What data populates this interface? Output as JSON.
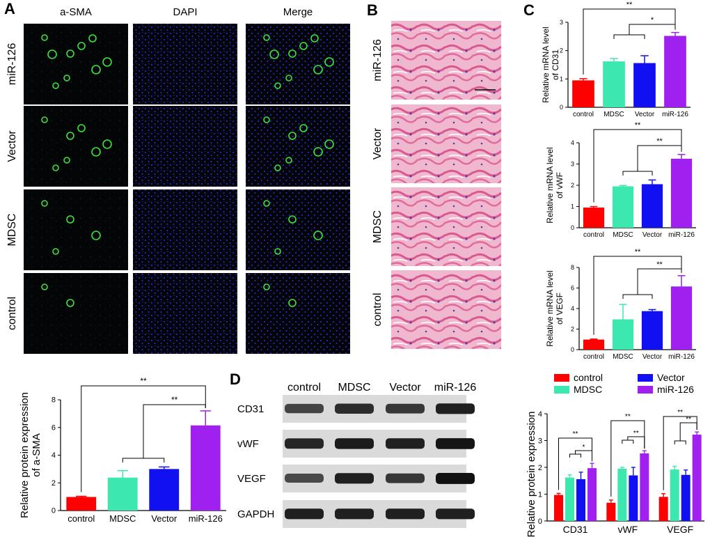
{
  "panel_letters": {
    "a": "A",
    "b": "B",
    "c": "C",
    "d": "D"
  },
  "panel_a": {
    "columns": [
      "a-SMA",
      "DAPI",
      "Merge"
    ],
    "rows": [
      "miR-126",
      "Vector",
      "MDSC",
      "control"
    ]
  },
  "panel_b": {
    "rows": [
      "miR-126",
      "Vector",
      "MDSC",
      "control"
    ]
  },
  "colors": {
    "control": "#ff0000",
    "MDSC": "#3ce8b0",
    "Vector": "#1010f0",
    "miR-126": "#a020f0",
    "fluor_bg": "#04040a",
    "he_pink": "#e98fb4"
  },
  "panel_d": {
    "lanes": [
      "control",
      "MDSC",
      "Vector",
      "miR-126"
    ],
    "proteins": [
      "CD31",
      "vWF",
      "VEGF",
      "GAPDH"
    ],
    "band_intensity": [
      [
        0.55,
        0.75,
        0.65,
        0.85
      ],
      [
        0.8,
        0.9,
        0.85,
        0.95
      ],
      [
        0.5,
        0.85,
        0.65,
        0.98
      ],
      [
        0.85,
        0.85,
        0.85,
        0.85
      ]
    ]
  },
  "chart_data": [
    {
      "id": "c_cd31",
      "type": "bar",
      "categories": [
        "control",
        "MDSC",
        "Vector",
        "miR-126"
      ],
      "values": [
        0.95,
        1.62,
        1.56,
        2.52
      ],
      "errors": [
        0.06,
        0.1,
        0.26,
        0.12
      ],
      "ylabel": [
        "Relative mRNA level",
        "of CD31"
      ],
      "ylim": [
        0,
        3
      ],
      "yticks": [
        0,
        1,
        2,
        3
      ],
      "significance": [
        "**",
        "*"
      ]
    },
    {
      "id": "c_vwf",
      "type": "bar",
      "categories": [
        "control",
        "MDSC",
        "Vector",
        "miR-126"
      ],
      "values": [
        0.95,
        1.95,
        2.05,
        3.25
      ],
      "errors": [
        0.05,
        0.04,
        0.2,
        0.2
      ],
      "ylabel": [
        "Relative mRNA level",
        "of vWF"
      ],
      "ylim": [
        0,
        4
      ],
      "yticks": [
        0,
        1,
        2,
        3,
        4
      ],
      "significance": [
        "**",
        "**"
      ]
    },
    {
      "id": "c_vegf",
      "type": "bar",
      "categories": [
        "control",
        "MDSC",
        "Vector",
        "miR-126"
      ],
      "values": [
        0.98,
        2.95,
        3.75,
        6.15
      ],
      "errors": [
        0.05,
        1.45,
        0.15,
        1.05
      ],
      "ylabel": [
        "Relative mRNA level",
        "of VEGF"
      ],
      "ylim": [
        0,
        8
      ],
      "yticks": [
        0,
        2,
        4,
        6,
        8
      ],
      "significance": [
        "**",
        "**"
      ]
    },
    {
      "id": "a_sma",
      "type": "bar",
      "categories": [
        "control",
        "MDSC",
        "Vector",
        "miR-126"
      ],
      "values": [
        0.98,
        2.38,
        3.0,
        6.15
      ],
      "errors": [
        0.05,
        0.5,
        0.15,
        1.05
      ],
      "ylabel": [
        "Relative protein expression",
        "of a-SMA"
      ],
      "ylim": [
        0,
        8
      ],
      "yticks": [
        0,
        2,
        4,
        6,
        8
      ],
      "significance": [
        "**",
        "**"
      ]
    },
    {
      "id": "d_protein",
      "type": "bar",
      "categories": [
        "CD31",
        "vWF",
        "VEGF"
      ],
      "series": [
        {
          "name": "control",
          "values": [
            0.97,
            0.68,
            0.9
          ],
          "errors": [
            0.06,
            0.1,
            0.12
          ]
        },
        {
          "name": "MDSC",
          "values": [
            1.62,
            1.95,
            1.92
          ],
          "errors": [
            0.1,
            0.05,
            0.12
          ]
        },
        {
          "name": "Vector",
          "values": [
            1.56,
            1.7,
            1.72
          ],
          "errors": [
            0.26,
            0.3,
            0.18
          ]
        },
        {
          "name": "miR-126",
          "values": [
            1.97,
            2.52,
            3.22
          ],
          "errors": [
            0.18,
            0.1,
            0.1
          ]
        }
      ],
      "ylabel": "Relative protein expression",
      "ylim": [
        0,
        4
      ],
      "yticks": [
        0,
        1,
        2,
        3,
        4
      ],
      "legend": [
        "control",
        "Vector",
        "MDSC",
        "miR-126"
      ],
      "significance": [
        [
          "**",
          "*"
        ],
        [
          "**",
          "**"
        ],
        [
          "**",
          "**"
        ]
      ]
    }
  ]
}
